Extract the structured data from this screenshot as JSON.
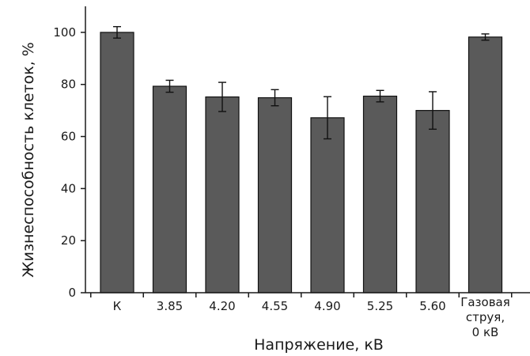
{
  "chart_data": {
    "type": "bar",
    "xlabel": "Напряжение, кВ",
    "ylabel": "Жизнеспособность клеток, %",
    "ylim": [
      0,
      110
    ],
    "yticks": [
      0,
      20,
      40,
      60,
      80,
      100
    ],
    "categories": [
      [
        "К"
      ],
      [
        "3.85"
      ],
      [
        "4.20"
      ],
      [
        "4.55"
      ],
      [
        "4.90"
      ],
      [
        "5.25"
      ],
      [
        "5.60"
      ],
      [
        "Газовая",
        "струя,",
        "0 кВ"
      ]
    ],
    "values": [
      100,
      79.3,
      75.2,
      74.9,
      67.2,
      75.5,
      70.0,
      98.2
    ],
    "errors": [
      2.2,
      2.3,
      5.6,
      3.1,
      8.1,
      2.2,
      7.2,
      1.2
    ],
    "grid": false,
    "colors": {
      "bar_fill": "#5a5a5a",
      "bar_stroke": "#111111",
      "axis": "#1a1a1a"
    }
  }
}
